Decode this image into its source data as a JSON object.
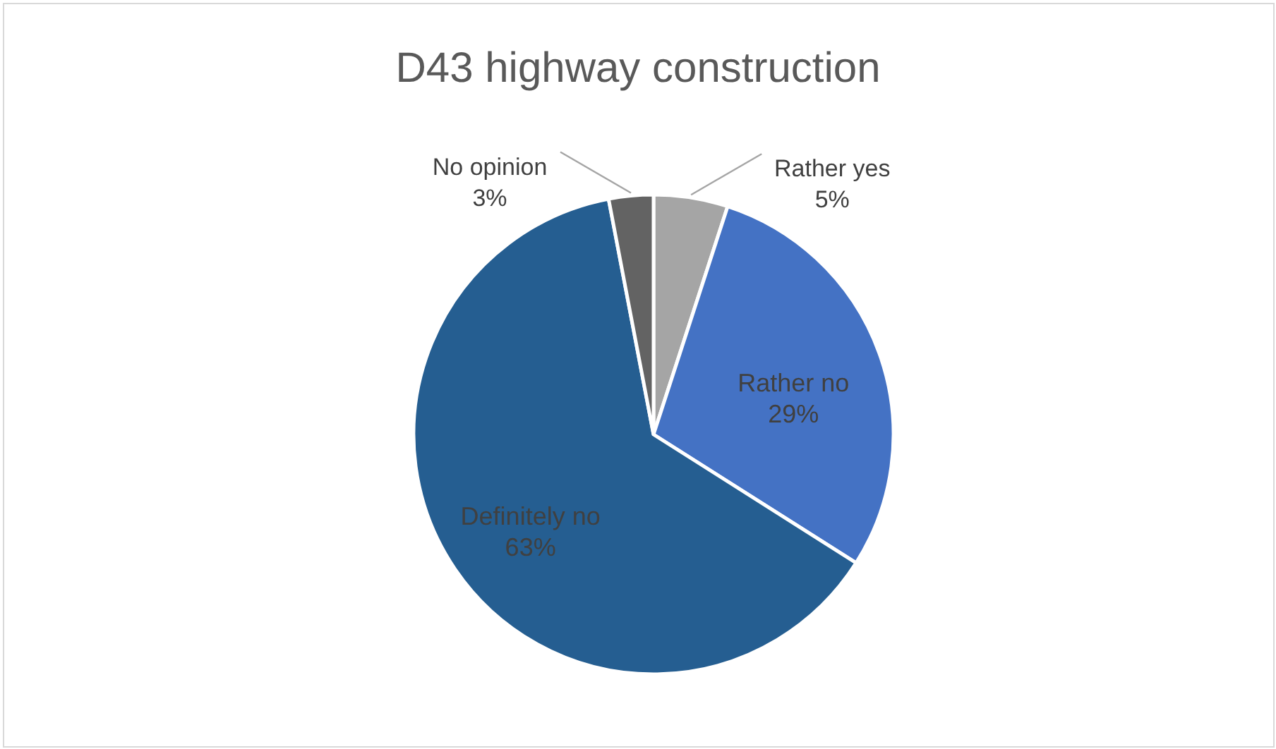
{
  "chart_data": {
    "type": "pie",
    "title": "D43 highway construction",
    "categories": [
      "Rather yes",
      "Rather no",
      "Definitely no",
      "No opinion"
    ],
    "values": [
      5,
      29,
      63,
      3
    ],
    "colors": [
      "#a5a5a5",
      "#4472c4",
      "#255e91",
      "#636363"
    ],
    "value_labels": [
      "5%",
      "29%",
      "63%",
      "3%"
    ],
    "legend": false
  }
}
